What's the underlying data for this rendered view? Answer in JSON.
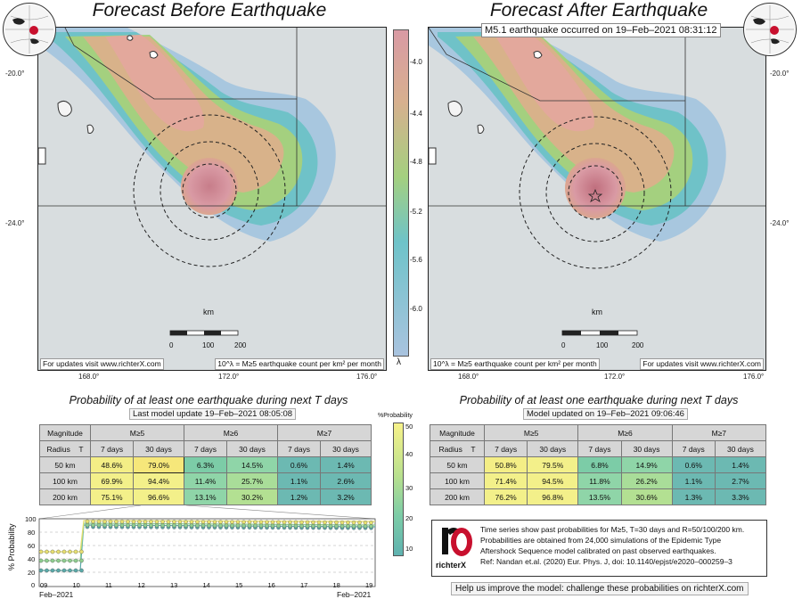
{
  "left_map": {
    "title": "Forecast Before Earthquake",
    "updates_note": "For updates visit www.richterX.com",
    "legend_note": "10^λ = M≥5 earthquake count per km² per month",
    "km_label": "km",
    "scale_ticks": [
      "0",
      "100",
      "200"
    ],
    "lat_labels": [
      "-20.0°",
      "-24.0°"
    ],
    "lon_labels": [
      "168.0°",
      "172.0°",
      "176.0°"
    ]
  },
  "right_map": {
    "title": "Forecast After Earthquake",
    "event_label": "M5.1 earthquake occurred on 19–Feb–2021 08:31:12",
    "updates_note": "For updates visit www.richterX.com",
    "legend_note": "10^λ = M≥5 earthquake count per km² per month",
    "km_label": "km",
    "scale_ticks": [
      "0",
      "100",
      "200"
    ],
    "lat_labels": [
      "-20.0°",
      "-24.0°"
    ],
    "lon_labels": [
      "168.0°",
      "172.0°",
      "176.0°"
    ]
  },
  "colorbar": {
    "ticks": [
      "-4.0",
      "-4.4",
      "-4.8",
      "-5.2",
      "-5.6",
      "-6.0"
    ],
    "symbol": "λ"
  },
  "left_table": {
    "title": "Probability of at least one earthquake during next T days",
    "subtitle": "Last model update 19–Feb–2021 08:05:08",
    "magnitude_label": "Magnitude",
    "radius_label": "Radius",
    "t_label": "T",
    "mags": [
      "M≥5",
      "M≥6",
      "M≥7"
    ],
    "periods": [
      "7 days",
      "30 days",
      "7 days",
      "30 days",
      "7 days",
      "30 days"
    ],
    "rows": [
      {
        "radius": "50 km",
        "values": [
          "48.6%",
          "79.0%",
          "6.3%",
          "14.5%",
          "0.6%",
          "1.4%"
        ]
      },
      {
        "radius": "100 km",
        "values": [
          "69.9%",
          "94.4%",
          "11.4%",
          "25.7%",
          "1.1%",
          "2.6%"
        ]
      },
      {
        "radius": "200 km",
        "values": [
          "75.1%",
          "96.6%",
          "13.1%",
          "30.2%",
          "1.2%",
          "3.2%"
        ]
      }
    ]
  },
  "right_table": {
    "title": "Probability of at least one earthquake during next T days",
    "subtitle": "Model updated on 19–Feb–2021 09:06:46",
    "magnitude_label": "Magnitude",
    "radius_label": "Radius",
    "t_label": "T",
    "mags": [
      "M≥5",
      "M≥6",
      "M≥7"
    ],
    "periods": [
      "7 days",
      "30 days",
      "7 days",
      "30 days",
      "7 days",
      "30 days"
    ],
    "rows": [
      {
        "radius": "50 km",
        "values": [
          "50.8%",
          "79.5%",
          "6.8%",
          "14.9%",
          "0.6%",
          "1.4%"
        ]
      },
      {
        "radius": "100 km",
        "values": [
          "71.4%",
          "94.5%",
          "11.8%",
          "26.2%",
          "1.1%",
          "2.7%"
        ]
      },
      {
        "radius": "200 km",
        "values": [
          "76.2%",
          "96.8%",
          "13.5%",
          "30.6%",
          "1.3%",
          "3.3%"
        ]
      }
    ]
  },
  "prob_colorbar": {
    "label": "%Probability",
    "ticks": [
      "50",
      "40",
      "30",
      "20",
      "10"
    ]
  },
  "timeseries": {
    "ylabel": "% Probability",
    "yticks": [
      "100",
      "80",
      "60",
      "40",
      "20",
      "0"
    ],
    "xticks": [
      "09",
      "10",
      "11",
      "12",
      "13",
      "14",
      "15",
      "16",
      "17",
      "18",
      "19"
    ],
    "start_label": "Feb–2021",
    "end_label": "Feb–2021"
  },
  "info": {
    "logo_text": "richterX",
    "lines": [
      "Time series show past probabilities for M≥5, T=30 days and R=50/100/200 km.",
      "Probabilities are obtained from 24,000 simulations of the Epidemic Type",
      "Aftershock Sequence model calibrated on past observed earthquakes.",
      "Ref: Nandan et.al. (2020) Eur. Phys. J, doi: 10.1140/epjst/e2020–000259–3"
    ],
    "help": "Help us improve the model: challenge these probabilities on richterX.com"
  },
  "colors": {
    "high": "#d9a0a8",
    "mid_high": "#d7b38c",
    "mid": "#9fcf7e",
    "mid_low": "#6ec3c9",
    "low": "#a9c3df",
    "cell_yellow": "#f3f08a",
    "cell_green": "#8fd5a8",
    "cell_teal": "#6cb9b2",
    "cell_selected": "#f6e77a"
  }
}
